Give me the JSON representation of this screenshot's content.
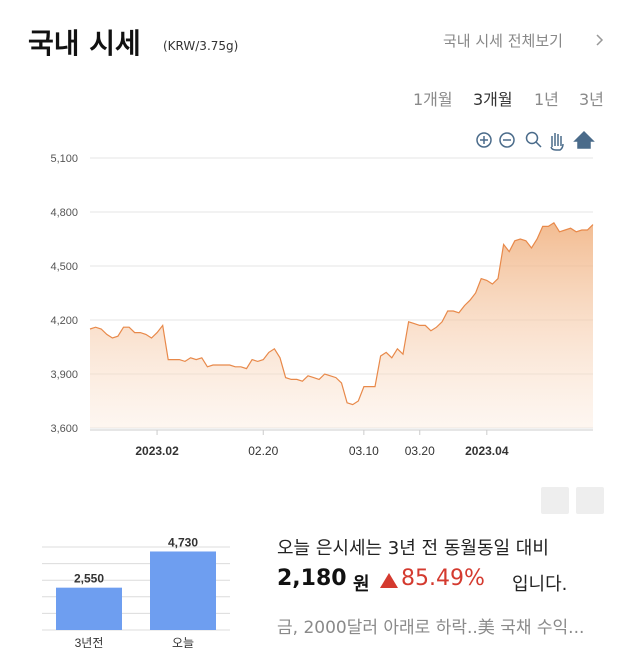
{
  "header": {
    "title": "국내 시세",
    "unit": "(KRW/3.75g)",
    "link": "국내 시세 전체보기"
  },
  "tabs": {
    "items": [
      "1개월",
      "3개월",
      "1년",
      "3년"
    ],
    "selected": 1
  },
  "chart_data": [
    {
      "type": "area",
      "color": "#e8894a",
      "grid": true,
      "categories": [
        null,
        null,
        null,
        null,
        null,
        null,
        null,
        null,
        null,
        null,
        null,
        null,
        "2023.02",
        null,
        null,
        null,
        null,
        null,
        null,
        null,
        null,
        null,
        null,
        null,
        null,
        null,
        null,
        null,
        null,
        null,
        null,
        "02.20",
        null,
        null,
        null,
        null,
        null,
        null,
        null,
        null,
        null,
        null,
        null,
        null,
        null,
        null,
        null,
        null,
        null,
        "03.10",
        null,
        null,
        null,
        null,
        null,
        null,
        null,
        null,
        null,
        "03.20",
        null,
        null,
        null,
        null,
        null,
        null,
        null,
        null,
        null,
        null,
        null,
        "2023.04",
        null,
        null,
        null,
        null,
        null,
        null,
        null,
        null,
        null,
        null,
        null,
        null,
        null,
        null,
        null,
        null,
        null,
        null,
        null
      ],
      "values": [
        4150,
        4160,
        4150,
        4120,
        4100,
        4110,
        4160,
        4160,
        4130,
        4130,
        4120,
        4100,
        4130,
        4170,
        3980,
        3980,
        3980,
        3970,
        3990,
        3980,
        3990,
        3940,
        3950,
        3950,
        3950,
        3950,
        3940,
        3940,
        3930,
        3980,
        3970,
        3980,
        4020,
        4040,
        3990,
        3880,
        3870,
        3870,
        3860,
        3890,
        3880,
        3870,
        3900,
        3890,
        3880,
        3850,
        3740,
        3730,
        3750,
        3830,
        3830,
        3830,
        4000,
        4020,
        3990,
        4040,
        4010,
        4190,
        4180,
        4170,
        4170,
        4140,
        4160,
        4190,
        4250,
        4250,
        4240,
        4280,
        4310,
        4350,
        4430,
        4420,
        4400,
        4430,
        4620,
        4580,
        4640,
        4650,
        4640,
        4600,
        4650,
        4720,
        4720,
        4740,
        4690,
        4700,
        4710,
        4690,
        4700,
        4700,
        4730
      ],
      "ylim": [
        3600,
        5100
      ],
      "yticks": [
        {
          "value": 3600,
          "label": "3,600"
        },
        {
          "value": 3900,
          "label": "3,900"
        },
        {
          "value": 4200,
          "label": "4,200"
        },
        {
          "value": 4500,
          "label": "4,500"
        },
        {
          "value": 4800,
          "label": "4,800"
        },
        {
          "value": 5100,
          "label": "5,100"
        }
      ]
    },
    {
      "type": "bar",
      "color": "#6e9ef0",
      "grid": true,
      "categories": [
        "3년전",
        "오늘"
      ],
      "values": [
        2550,
        4730
      ],
      "value_labels": [
        "2,550",
        "4,730"
      ],
      "ylim": [
        0,
        5000
      ],
      "yticks": [
        0,
        1000,
        2000,
        3000,
        4000,
        5000
      ]
    }
  ],
  "summary": {
    "line": "오늘 은시세는 3년 전 동월동일 대비",
    "change": "2,180",
    "unit": "원",
    "rate": "85.49%",
    "suffix": "입니다.",
    "news": "금, 2000달러 아래로 하락..美 국채 수익..."
  }
}
